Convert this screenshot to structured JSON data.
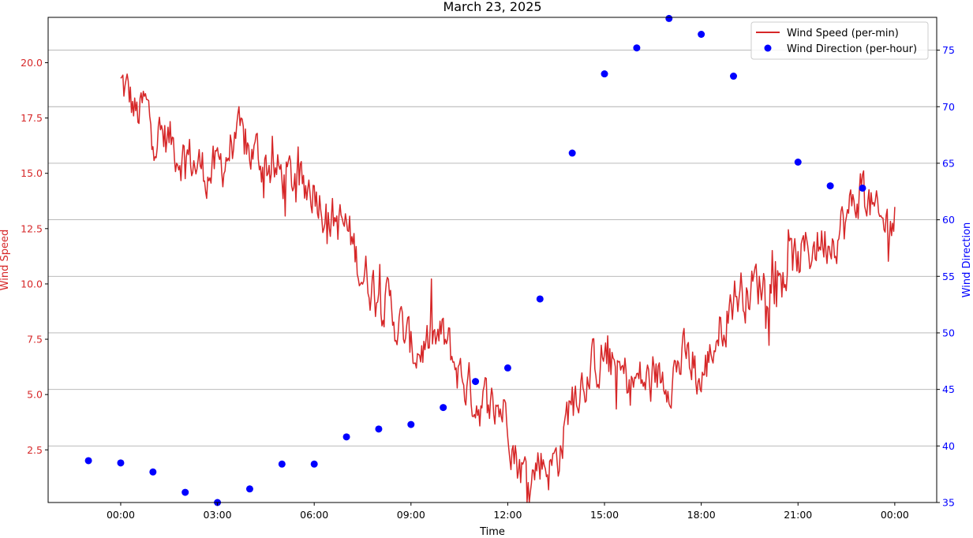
{
  "chart_data": {
    "type": "line",
    "title": "March 23, 2025",
    "xlabel": "Time",
    "x_tick_labels": [
      "00:00",
      "03:00",
      "06:00",
      "09:00",
      "12:00",
      "15:00",
      "18:00",
      "21:00",
      "00:00"
    ],
    "x_tick_hours": [
      0,
      3,
      6,
      9,
      12,
      15,
      18,
      21,
      24
    ],
    "xlim_hours": [
      -2.25,
      25.3
    ],
    "left_axis": {
      "label": "Wind Speed",
      "color": "#d62728",
      "ylim": [
        0.12,
        22.05
      ],
      "ticks": [
        2.5,
        5.0,
        7.5,
        10.0,
        12.5,
        15.0,
        17.5,
        20.0
      ],
      "tick_labels": [
        "2.5",
        "5.0",
        "7.5",
        "10.0",
        "12.5",
        "15.0",
        "17.5",
        "20.0"
      ]
    },
    "right_axis": {
      "label": "Wind Direction",
      "color": "#0000ff",
      "ylim": [
        35,
        77.9
      ],
      "ticks": [
        35,
        40,
        45,
        50,
        55,
        60,
        65,
        70,
        75
      ],
      "tick_labels": [
        "35",
        "40",
        "45",
        "50",
        "55",
        "60",
        "65",
        "70",
        "75"
      ]
    },
    "grid": "horizontal lines at right-axis ticks",
    "legend_placement": "top-right",
    "series": [
      {
        "name": "Wind Speed (per-min)",
        "kind": "line",
        "axis": "left",
        "color": "#d62728",
        "x_hours": [
          0,
          0.25,
          0.5,
          0.75,
          1,
          1.5,
          2,
          2.5,
          3,
          3.5,
          4,
          4.5,
          5,
          5.5,
          6,
          6.5,
          7,
          7.5,
          8,
          8.5,
          9,
          9.5,
          10,
          10.5,
          11,
          11.5,
          12,
          12.25,
          12.5,
          12.75,
          13,
          13.25,
          13.5,
          13.75,
          14,
          14.5,
          15,
          15.5,
          16,
          16.5,
          17,
          17.5,
          18,
          18.5,
          19,
          19.5,
          20,
          20.5,
          21,
          21.5,
          22,
          22.5,
          23,
          23.5,
          24
        ],
        "values": [
          19.0,
          18.5,
          17.5,
          18.0,
          17.0,
          16.5,
          15.8,
          15.2,
          15.0,
          16.5,
          16.0,
          15.5,
          14.8,
          14.5,
          14.5,
          13.0,
          12.5,
          10.5,
          9.8,
          8.5,
          7.0,
          7.2,
          7.5,
          6.0,
          4.8,
          4.5,
          4.3,
          2.2,
          1.5,
          1.2,
          2.2,
          1.8,
          2.0,
          3.2,
          5.2,
          6.0,
          6.8,
          5.8,
          5.6,
          5.5,
          6.0,
          6.6,
          5.5,
          7.8,
          9.5,
          9.8,
          10.2,
          10.5,
          11.0,
          11.8,
          12.2,
          12.8,
          14.5,
          12.5,
          13.0
        ],
        "noise_amplitude": 1.2
      },
      {
        "name": "Wind Direction (per-hour)",
        "kind": "scatter",
        "axis": "right",
        "color": "#0000ff",
        "x_hours": [
          -1,
          0,
          1,
          2,
          3,
          4,
          5,
          6,
          7,
          8,
          9,
          10,
          11,
          12,
          13,
          14,
          15,
          16,
          17,
          18,
          19,
          21,
          22,
          23
        ],
        "values": [
          38.7,
          38.5,
          37.7,
          35.9,
          35.0,
          36.2,
          38.4,
          38.4,
          40.8,
          41.5,
          41.9,
          43.4,
          45.7,
          46.9,
          53.0,
          65.9,
          72.9,
          75.2,
          77.8,
          76.4,
          72.7,
          65.1,
          63.0,
          62.8
        ]
      }
    ]
  }
}
